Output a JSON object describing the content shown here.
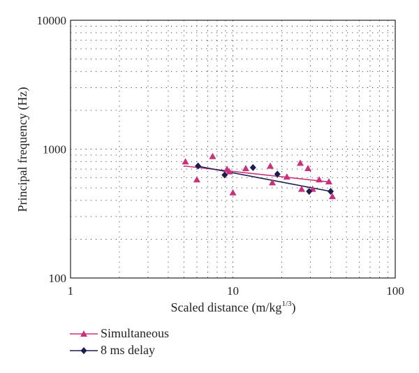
{
  "chart_data": {
    "type": "scatter",
    "title": "",
    "xlabel": "Scaled distance (m/kg",
    "xlabel_sup": "1/3",
    "xlabel_end": ")",
    "ylabel": "Principal frequency (Hz)",
    "x_scale": "log",
    "y_scale": "log",
    "xlim": [
      1,
      100
    ],
    "ylim": [
      100,
      10000
    ],
    "x_ticks": [
      {
        "value": 1,
        "label": "1"
      },
      {
        "value": 10,
        "label": "10"
      },
      {
        "value": 100,
        "label": "100"
      }
    ],
    "y_ticks": [
      {
        "value": 100,
        "label": "100"
      },
      {
        "value": 1000,
        "label": "1000"
      },
      {
        "value": 10000,
        "label": "10000"
      }
    ],
    "grid": true,
    "grid_style": "dotted",
    "legend_position": "bottom-left",
    "series": [
      {
        "name": "Simultaneous",
        "color": "#c8327a",
        "marker": "triangle",
        "points": [
          [
            5.1,
            800
          ],
          [
            6.0,
            580
          ],
          [
            7.5,
            880
          ],
          [
            9.2,
            700
          ],
          [
            9.5,
            670
          ],
          [
            10.0,
            460
          ],
          [
            12.0,
            710
          ],
          [
            17.0,
            740
          ],
          [
            17.5,
            550
          ],
          [
            21.5,
            610
          ],
          [
            26.0,
            780
          ],
          [
            26.5,
            490
          ],
          [
            29.0,
            710
          ],
          [
            31.0,
            490
          ],
          [
            34.0,
            580
          ],
          [
            39.0,
            560
          ],
          [
            41.0,
            430
          ]
        ],
        "trend": [
          [
            5.0,
            740
          ],
          [
            40.0,
            555
          ]
        ]
      },
      {
        "name": "8 ms delay",
        "color": "#1c1c52",
        "marker": "diamond",
        "points": [
          [
            6.1,
            740
          ],
          [
            8.9,
            630
          ],
          [
            13.3,
            720
          ],
          [
            18.8,
            640
          ],
          [
            29.5,
            470
          ],
          [
            40.0,
            470
          ]
        ],
        "trend": [
          [
            6.0,
            740
          ],
          [
            40.0,
            470
          ]
        ]
      }
    ]
  }
}
